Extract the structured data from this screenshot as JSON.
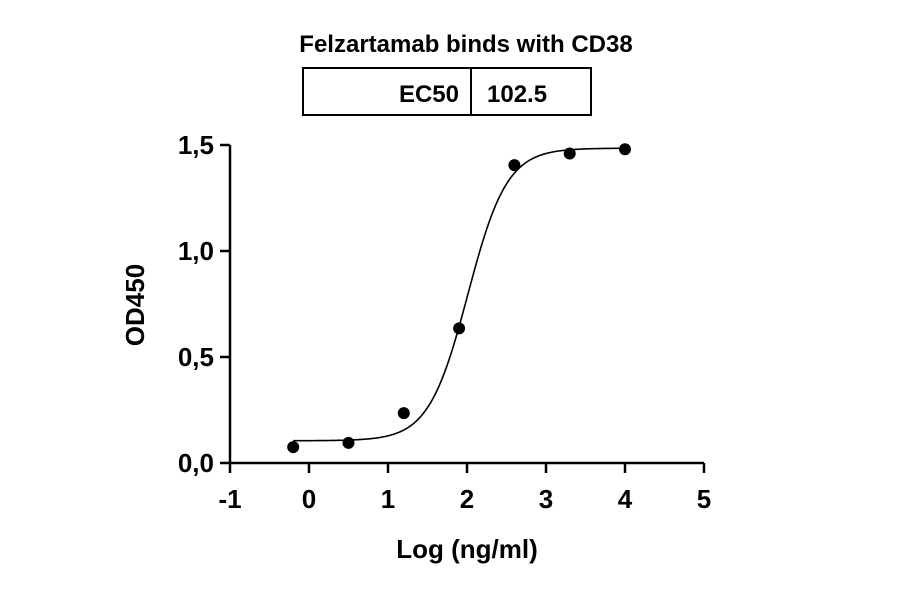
{
  "chart_data": {
    "type": "scatter",
    "title": "Felzartamab binds with CD38",
    "ec50_table": {
      "label": "EC50",
      "value": "102.5"
    },
    "xlabel": "Log (ng/ml)",
    "ylabel": "OD450",
    "xlim": [
      -1,
      5
    ],
    "ylim": [
      0,
      1.5
    ],
    "x_ticks": [
      "-1",
      "0",
      "1",
      "2",
      "3",
      "4",
      "5"
    ],
    "y_ticks": [
      "0,0",
      "0,5",
      "1,0",
      "1,5"
    ],
    "grid": false,
    "series": [
      {
        "points": [
          {
            "x": -0.2,
            "y": 0.075
          },
          {
            "x": 0.5,
            "y": 0.095
          },
          {
            "x": 1.2,
            "y": 0.235
          },
          {
            "x": 1.9,
            "y": 0.635
          },
          {
            "x": 2.6,
            "y": 1.405
          },
          {
            "x": 3.3,
            "y": 1.46
          },
          {
            "x": 4.0,
            "y": 1.48
          }
        ]
      }
    ],
    "fit_curve": {
      "model": "4PL",
      "bottom": 0.105,
      "top": 1.485,
      "log_ec50": 2.0107,
      "hill_slope": 1.75,
      "x_range": [
        -0.2,
        4.0
      ]
    },
    "colors": {
      "marks": "#000000",
      "background": "#ffffff"
    }
  }
}
